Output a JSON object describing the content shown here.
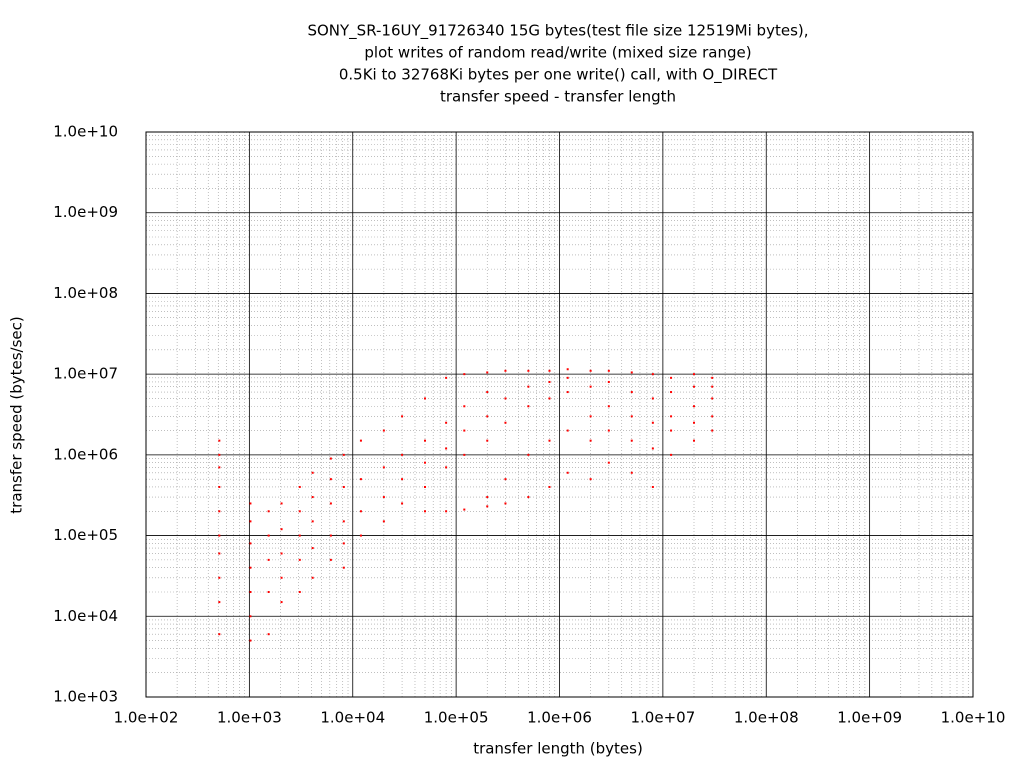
{
  "chart_data": {
    "type": "scatter",
    "title": [
      "SONY_SR-16UY_91726340 15G bytes(test file size 12519Mi bytes),",
      "plot writes of random read/write (mixed size range)",
      "0.5Ki to 32768Ki bytes per one write() call, with O_DIRECT",
      "transfer speed - transfer length"
    ],
    "xlabel": "transfer length (bytes)",
    "ylabel": "transfer speed (bytes/sec)",
    "xscale": "log",
    "yscale": "log",
    "grid": true,
    "minor_grid": true,
    "color": "#ff0000",
    "xlim": [
      100,
      10000000000
    ],
    "ylim": [
      1000,
      10000000000
    ],
    "xticks": [
      {
        "value": 100,
        "label": "1.0e+02"
      },
      {
        "value": 1000,
        "label": "1.0e+03"
      },
      {
        "value": 10000,
        "label": "1.0e+04"
      },
      {
        "value": 100000,
        "label": "1.0e+05"
      },
      {
        "value": 1000000,
        "label": "1.0e+06"
      },
      {
        "value": 10000000,
        "label": "1.0e+07"
      },
      {
        "value": 100000000,
        "label": "1.0e+08"
      },
      {
        "value": 1000000000,
        "label": "1.0e+09"
      },
      {
        "value": 10000000000,
        "label": "1.0e+10"
      }
    ],
    "yticks": [
      {
        "value": 1000,
        "label": "1.0e+03"
      },
      {
        "value": 10000,
        "label": "1.0e+04"
      },
      {
        "value": 100000,
        "label": "1.0e+05"
      },
      {
        "value": 1000000,
        "label": "1.0e+06"
      },
      {
        "value": 10000000,
        "label": "1.0e+07"
      },
      {
        "value": 100000000,
        "label": "1.0e+08"
      },
      {
        "value": 1000000000,
        "label": "1.0e+09"
      },
      {
        "value": 10000000000,
        "label": "1.0e+10"
      }
    ],
    "x": [
      512,
      512,
      512,
      512,
      512,
      512,
      512,
      512,
      512,
      512,
      1024,
      1024,
      1024,
      1024,
      1024,
      1024,
      1024,
      1536,
      1536,
      1536,
      1536,
      1536,
      2048,
      2048,
      2048,
      2048,
      2048,
      3072,
      3072,
      3072,
      3072,
      3072,
      4096,
      4096,
      4096,
      4096,
      4096,
      6144,
      6144,
      6144,
      6144,
      6144,
      8192,
      8192,
      8192,
      8192,
      8192,
      12000,
      12000,
      12000,
      12000,
      20000,
      20000,
      20000,
      20000,
      30000,
      30000,
      30000,
      30000,
      50000,
      50000,
      50000,
      50000,
      50000,
      80000,
      80000,
      80000,
      80000,
      80000,
      120000,
      120000,
      120000,
      120000,
      120000,
      200000,
      200000,
      200000,
      200000,
      200000,
      200000,
      300000,
      300000,
      300000,
      300000,
      300000,
      500000,
      500000,
      500000,
      500000,
      500000,
      800000,
      800000,
      800000,
      800000,
      800000,
      1200000,
      1200000,
      1200000,
      1200000,
      1200000,
      2000000,
      2000000,
      2000000,
      2000000,
      2000000,
      3000000,
      3000000,
      3000000,
      3000000,
      3000000,
      5000000,
      5000000,
      5000000,
      5000000,
      5000000,
      8000000,
      8000000,
      8000000,
      8000000,
      8000000,
      12000000,
      12000000,
      12000000,
      12000000,
      12000000,
      20000000,
      20000000,
      20000000,
      20000000,
      20000000,
      30000000,
      30000000,
      30000000,
      30000000,
      30000000
    ],
    "values": [
      6000,
      15000,
      30000,
      60000,
      100000,
      200000,
      400000,
      700000,
      1000000,
      1500000,
      5000,
      10000,
      20000,
      40000,
      80000,
      150000,
      250000,
      6000,
      20000,
      50000,
      100000,
      200000,
      15000,
      30000,
      60000,
      120000,
      250000,
      20000,
      50000,
      100000,
      200000,
      400000,
      30000,
      70000,
      150000,
      300000,
      600000,
      50000,
      100000,
      250000,
      500000,
      900000,
      40000,
      80000,
      150000,
      400000,
      1000000,
      100000,
      200000,
      500000,
      1500000,
      150000,
      300000,
      700000,
      2000000,
      250000,
      500000,
      1000000,
      3000000,
      200000,
      400000,
      800000,
      1500000,
      5000000,
      200000,
      700000,
      1200000,
      2500000,
      9000000,
      210000,
      1000000,
      2000000,
      4000000,
      10000000,
      230000,
      300000,
      1500000,
      3000000,
      6000000,
      10500000,
      250000,
      500000,
      2500000,
      5000000,
      11000000,
      300000,
      1000000,
      4000000,
      7000000,
      11000000,
      400000,
      1500000,
      5000000,
      8000000,
      11000000,
      600000,
      2000000,
      6000000,
      9000000,
      11500000,
      500000,
      1500000,
      3000000,
      7000000,
      11000000,
      800000,
      2000000,
      4000000,
      8000000,
      11000000,
      600000,
      1500000,
      3000000,
      6000000,
      10500000,
      400000,
      1200000,
      2500000,
      5000000,
      10000000,
      1000000,
      2000000,
      3000000,
      6000000,
      9000000,
      1500000,
      2500000,
      4000000,
      7000000,
      10000000,
      2000000,
      3000000,
      5000000,
      7000000,
      9000000
    ]
  }
}
